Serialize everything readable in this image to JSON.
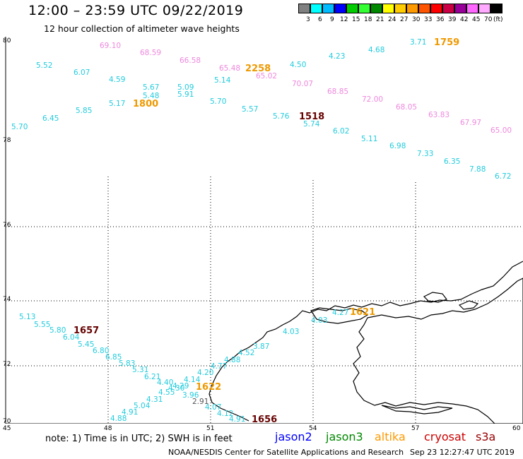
{
  "title": "12:00 – 23:59 UTC 09/22/2019",
  "subtitle": "12 hour collection of altimeter wave heights",
  "colorbar": {
    "colors": [
      "#808080",
      "#00ffff",
      "#00bbff",
      "#0000ff",
      "#00cc00",
      "#33ff33",
      "#008800",
      "#ffff00",
      "#ffcc00",
      "#ff9900",
      "#ff5500",
      "#ff0000",
      "#cc0044",
      "#990099",
      "#ff66ff",
      "#ffaaff",
      "#000000"
    ],
    "labels": [
      "3",
      "6",
      "9",
      "12",
      "15",
      "18",
      "21",
      "24",
      "27",
      "30",
      "33",
      "36",
      "39",
      "42",
      "45",
      "70",
      "(ft)"
    ]
  },
  "axes": {
    "lat_labels": [
      "80",
      "78",
      "76",
      "74",
      "72",
      "70"
    ],
    "lon_labels": [
      "45",
      "48",
      "51",
      "54",
      "57",
      "60"
    ]
  },
  "cyan_values": [
    "5.52",
    "6.07",
    "4.59",
    "5.67",
    "5.48",
    "5.17",
    "5.09",
    "5.91",
    "5.14",
    "5.70",
    "5.57",
    "5.76",
    "5.74",
    "4.50",
    "4.23",
    "4.68",
    "3.71",
    "6.02",
    "5.11",
    "6.98",
    "7.33",
    "6.35",
    "7.88",
    "6.72",
    "5.85",
    "6.45",
    "5.70",
    "5.13",
    "5.55",
    "5.80",
    "6.04",
    "5.45",
    "6.80",
    "6.85",
    "5.83",
    "5.31",
    "6.21",
    "4.40",
    "4.30",
    "4.29",
    "4.14",
    "4.20",
    "4.77",
    "4.88",
    "4.52",
    "3.87",
    "3.96",
    "4.55",
    "4.31",
    "5.04",
    "4.91",
    "4.88",
    "4.07",
    "4.12",
    "4.91",
    "4.03",
    "4.03",
    "4.27"
  ],
  "pink_values": [
    "69.10",
    "68.59",
    "66.58",
    "65.48",
    "65.02",
    "70.07",
    "68.85",
    "72.00",
    "68.05",
    "63.83",
    "67.97",
    "65.00"
  ],
  "gray_values": [
    "2.91"
  ],
  "time_markers": [
    {
      "text": "1759",
      "sat": "altika"
    },
    {
      "text": "2258",
      "sat": "altika"
    },
    {
      "text": "1800",
      "sat": "altika"
    },
    {
      "text": "1518",
      "sat": "cryosat"
    },
    {
      "text": "1621",
      "sat": "altika"
    },
    {
      "text": "1657",
      "sat": "cryosat"
    },
    {
      "text": "1622",
      "sat": "altika"
    },
    {
      "text": "1656",
      "sat": "cryosat"
    }
  ],
  "note": "note:  1) Time is in UTC;  2) SWH is in feet",
  "legend": [
    {
      "name": "jason2",
      "color": "#0000ff"
    },
    {
      "name": "jason3",
      "color": "#008800"
    },
    {
      "name": "altika",
      "color": "#ff9900"
    },
    {
      "name": "cryosat",
      "color": "#cc0000"
    },
    {
      "name": "s3a",
      "color": "#990000"
    }
  ],
  "credit": "NOAA/NESDIS Center for Satellite Applications and Research",
  "timestamp": "Sep 23 12:27:47 UTC 2019"
}
